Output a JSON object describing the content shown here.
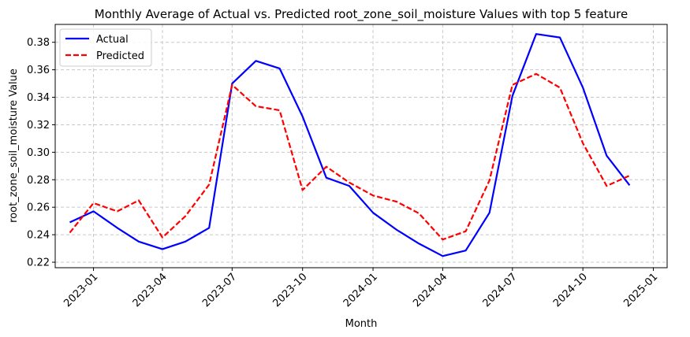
{
  "chart_data": {
    "type": "line",
    "title": "Monthly Average of Actual vs. Predicted root_zone_soil_moisture Values with top 5 feature",
    "xlabel": "Month",
    "ylabel": "root_zone_soil_moisture Value",
    "ylim": [
      0.216,
      0.393
    ],
    "xlim": [
      "2022-11-12",
      "2025-01-19"
    ],
    "grid": true,
    "legend_position": "upper left",
    "x_ticks": [
      "2023-01",
      "2023-04",
      "2023-07",
      "2023-10",
      "2024-01",
      "2024-04",
      "2024-07",
      "2024-10",
      "2025-01"
    ],
    "y_ticks": [
      "0.22",
      "0.24",
      "0.26",
      "0.28",
      "0.30",
      "0.32",
      "0.34",
      "0.36",
      "0.38"
    ],
    "x": [
      "2022-12-01",
      "2023-01-01",
      "2023-02-01",
      "2023-03-01",
      "2023-04-01",
      "2023-05-01",
      "2023-06-01",
      "2023-07-01",
      "2023-08-01",
      "2023-09-01",
      "2023-10-01",
      "2023-11-01",
      "2023-12-01",
      "2024-01-01",
      "2024-02-01",
      "2024-03-01",
      "2024-04-01",
      "2024-05-01",
      "2024-06-01",
      "2024-07-01",
      "2024-08-01",
      "2024-09-01",
      "2024-10-01",
      "2024-11-01",
      "2024-12-01"
    ],
    "series": [
      {
        "name": "Actual",
        "color": "#0000ff",
        "style": "solid",
        "values": [
          0.249,
          0.257,
          0.245,
          0.235,
          0.2295,
          0.235,
          0.245,
          0.35,
          0.3665,
          0.361,
          0.326,
          0.2815,
          0.2755,
          0.256,
          0.2435,
          0.2335,
          0.2245,
          0.2285,
          0.256,
          0.341,
          0.386,
          0.3835,
          0.347,
          0.2975,
          0.276
        ]
      },
      {
        "name": "Predicted",
        "color": "#ff0000",
        "style": "dashed",
        "values": [
          0.2415,
          0.263,
          0.257,
          0.265,
          0.238,
          0.2535,
          0.2765,
          0.349,
          0.3335,
          0.3305,
          0.2725,
          0.2895,
          0.278,
          0.2685,
          0.264,
          0.2555,
          0.2365,
          0.2425,
          0.2795,
          0.349,
          0.357,
          0.347,
          0.3065,
          0.2755,
          0.283
        ]
      }
    ]
  }
}
